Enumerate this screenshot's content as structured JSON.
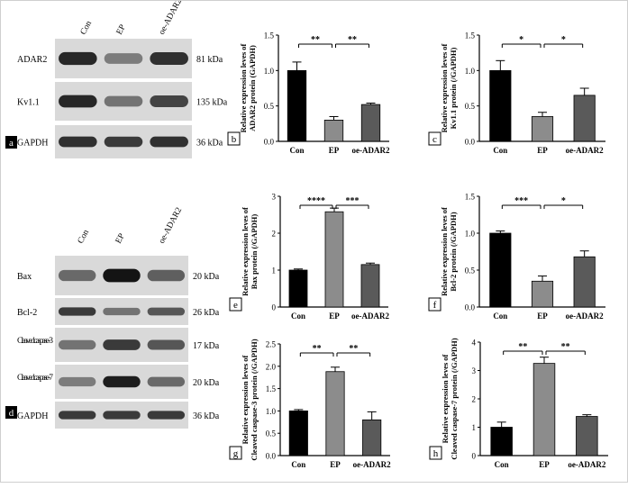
{
  "blots": [
    {
      "panel_letter": "a",
      "lanes": [
        "Con",
        "EP",
        "oe-ADAR2"
      ],
      "rows": [
        {
          "label": "ADAR2",
          "size": "81 kDa",
          "lanes": [
            0.85,
            0.4,
            0.8
          ]
        },
        {
          "label": "Kv1.1",
          "size": "135 kDa",
          "lanes": [
            0.85,
            0.45,
            0.7
          ]
        },
        {
          "label": "GAPDH",
          "size": "36 kDa",
          "lanes": [
            0.8,
            0.75,
            0.8
          ]
        }
      ]
    },
    {
      "panel_letter": "d",
      "lanes": [
        "Con",
        "EP",
        "oe-ADAR2"
      ],
      "rows": [
        {
          "label": "Bax",
          "size": "20 kDa",
          "lanes": [
            0.5,
            0.95,
            0.55
          ]
        },
        {
          "label": "Bcl-2",
          "size": "26 kDa",
          "lanes": [
            0.75,
            0.45,
            0.6
          ]
        },
        {
          "label": "Cleaved caspase-3",
          "size": "17 kDa",
          "lanes": [
            0.45,
            0.75,
            0.6
          ]
        },
        {
          "label": "Cleaved caspase-7",
          "size": "20 kDa",
          "lanes": [
            0.4,
            0.9,
            0.5
          ]
        },
        {
          "label": "GAPDH",
          "size": "36 kDa",
          "lanes": [
            0.75,
            0.75,
            0.75
          ]
        }
      ]
    }
  ],
  "chart_data": [
    {
      "type": "bar",
      "panel_letter": "b",
      "categories": [
        "Con",
        "EP",
        "oe-ADAR2"
      ],
      "values": [
        1.0,
        0.3,
        0.52
      ],
      "errors": [
        0.12,
        0.05,
        0.02
      ],
      "colors": [
        "#000000",
        "#8c8c8c",
        "#5a5a5a"
      ],
      "ylabel": [
        "Relative expression leves of",
        "ADAR2 protein (GAPDH)"
      ],
      "ylim": [
        0,
        1.5
      ],
      "yticks": [
        "0.0",
        "0.5",
        "1.0",
        "1.5"
      ],
      "significance": [
        {
          "from": 0,
          "to": 1,
          "label": "**"
        },
        {
          "from": 1,
          "to": 2,
          "label": "**"
        }
      ]
    },
    {
      "type": "bar",
      "panel_letter": "c",
      "categories": [
        "Con",
        "EP",
        "oe-ADAR2"
      ],
      "values": [
        1.0,
        0.35,
        0.65
      ],
      "errors": [
        0.14,
        0.06,
        0.1
      ],
      "colors": [
        "#000000",
        "#8c8c8c",
        "#5a5a5a"
      ],
      "ylabel": [
        "Relative expression leves of",
        "Kv1.1 protein (/GAPDH)"
      ],
      "ylim": [
        0,
        1.5
      ],
      "yticks": [
        "0.0",
        "0.5",
        "1.0",
        "1.5"
      ],
      "significance": [
        {
          "from": 0,
          "to": 1,
          "label": "*"
        },
        {
          "from": 1,
          "to": 2,
          "label": "*"
        }
      ]
    },
    {
      "type": "bar",
      "panel_letter": "e",
      "categories": [
        "Con",
        "EP",
        "oe-ADAR2"
      ],
      "values": [
        1.0,
        2.58,
        1.15
      ],
      "errors": [
        0.03,
        0.1,
        0.04
      ],
      "colors": [
        "#000000",
        "#8c8c8c",
        "#5a5a5a"
      ],
      "ylabel": [
        "Relative expression leves of",
        "Bax protein (/GAPDH)"
      ],
      "ylim": [
        0,
        3
      ],
      "yticks": [
        "0",
        "1",
        "2",
        "3"
      ],
      "significance": [
        {
          "from": 0,
          "to": 1,
          "label": "****"
        },
        {
          "from": 1,
          "to": 2,
          "label": "***"
        }
      ]
    },
    {
      "type": "bar",
      "panel_letter": "f",
      "categories": [
        "Con",
        "EP",
        "oe-ADAR2"
      ],
      "values": [
        1.0,
        0.35,
        0.68
      ],
      "errors": [
        0.03,
        0.07,
        0.08
      ],
      "colors": [
        "#000000",
        "#8c8c8c",
        "#5a5a5a"
      ],
      "ylabel": [
        "Relative expression leves of",
        "Bcl-2 protein (/GAPDH)"
      ],
      "ylim": [
        0,
        1.5
      ],
      "yticks": [
        "0.0",
        "0.5",
        "1.0",
        "1.5"
      ],
      "significance": [
        {
          "from": 0,
          "to": 1,
          "label": "***"
        },
        {
          "from": 1,
          "to": 2,
          "label": "*"
        }
      ]
    },
    {
      "type": "bar",
      "panel_letter": "g",
      "categories": [
        "Con",
        "EP",
        "oe-ADAR2"
      ],
      "values": [
        1.0,
        1.88,
        0.8
      ],
      "errors": [
        0.03,
        0.1,
        0.18
      ],
      "colors": [
        "#000000",
        "#8c8c8c",
        "#5a5a5a"
      ],
      "ylabel": [
        "Relative expression leves of",
        "Cleaved caspase-3 protein (/GAPDH)"
      ],
      "ylim": [
        0,
        2.5
      ],
      "yticks": [
        "0.0",
        "0.5",
        "1.0",
        "1.5",
        "2.0",
        "2.5"
      ],
      "significance": [
        {
          "from": 0,
          "to": 1,
          "label": "**"
        },
        {
          "from": 1,
          "to": 2,
          "label": "**"
        }
      ]
    },
    {
      "type": "bar",
      "panel_letter": "h",
      "categories": [
        "Con",
        "EP",
        "oe-ADAR2"
      ],
      "values": [
        1.0,
        3.25,
        1.38
      ],
      "errors": [
        0.18,
        0.22,
        0.06
      ],
      "colors": [
        "#000000",
        "#8c8c8c",
        "#5a5a5a"
      ],
      "ylabel": [
        "Relative expression leves of",
        "Cleaved caspase-7 protein (/GAPDH)"
      ],
      "ylim": [
        0,
        4
      ],
      "yticks": [
        "0",
        "1",
        "2",
        "3",
        "4"
      ],
      "significance": [
        {
          "from": 0,
          "to": 1,
          "label": "**"
        },
        {
          "from": 1,
          "to": 2,
          "label": "**"
        }
      ]
    }
  ]
}
